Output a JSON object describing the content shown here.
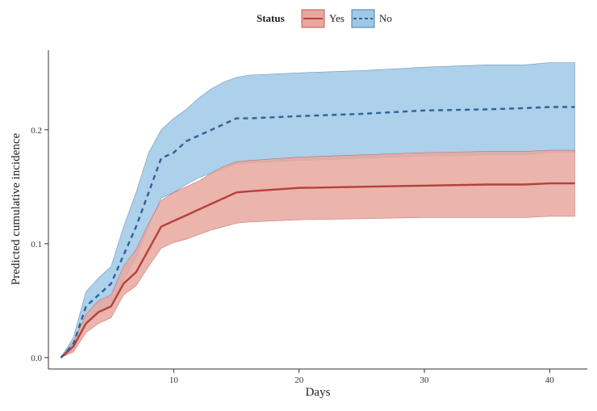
{
  "chart_data": {
    "type": "line",
    "xlabel": "Days",
    "ylabel": "Predicted cumulative incidence",
    "xlim": [
      0,
      43
    ],
    "ylim": [
      -0.01,
      0.27
    ],
    "x_ticks": [
      {
        "value": 10,
        "label": "10"
      },
      {
        "value": 20,
        "label": "20"
      },
      {
        "value": 30,
        "label": "30"
      },
      {
        "value": 40,
        "label": "40"
      }
    ],
    "y_ticks": [
      {
        "value": 0.0,
        "label": "0.0"
      },
      {
        "value": 0.1,
        "label": "0.1"
      },
      {
        "value": 0.2,
        "label": "0.2"
      }
    ],
    "grid": false,
    "legend": {
      "position": "top",
      "title": "Status",
      "entries": [
        "Yes",
        "No"
      ]
    },
    "series": [
      {
        "name": "Yes",
        "line_style": "solid",
        "line_color": "#b5413a",
        "band_color": "#e8a79f",
        "x": [
          1,
          2,
          3,
          4,
          5,
          6,
          7,
          8,
          9,
          10,
          11,
          12,
          13,
          14,
          15,
          16,
          20,
          25,
          30,
          35,
          38,
          40,
          42
        ],
        "y": [
          0.0,
          0.01,
          0.03,
          0.04,
          0.045,
          0.065,
          0.075,
          0.095,
          0.115,
          0.12,
          0.125,
          0.13,
          0.135,
          0.14,
          0.145,
          0.146,
          0.149,
          0.15,
          0.151,
          0.152,
          0.152,
          0.153,
          0.153
        ],
        "lower": [
          0.0,
          0.005,
          0.022,
          0.03,
          0.035,
          0.055,
          0.063,
          0.08,
          0.096,
          0.101,
          0.104,
          0.108,
          0.112,
          0.115,
          0.118,
          0.119,
          0.121,
          0.122,
          0.123,
          0.123,
          0.123,
          0.124,
          0.124
        ],
        "upper": [
          0.0,
          0.014,
          0.038,
          0.05,
          0.055,
          0.08,
          0.095,
          0.118,
          0.138,
          0.145,
          0.15,
          0.155,
          0.162,
          0.168,
          0.172,
          0.173,
          0.176,
          0.178,
          0.18,
          0.181,
          0.181,
          0.182,
          0.182
        ]
      },
      {
        "name": "No",
        "line_style": "dashed",
        "line_color": "#2e6296",
        "band_color": "#9fc8e8",
        "x": [
          1,
          2,
          3,
          4,
          5,
          6,
          7,
          8,
          9,
          10,
          11,
          12,
          13,
          14,
          15,
          16,
          20,
          25,
          30,
          35,
          38,
          40,
          42
        ],
        "y": [
          0.0,
          0.012,
          0.045,
          0.055,
          0.065,
          0.09,
          0.115,
          0.145,
          0.175,
          0.18,
          0.19,
          0.195,
          0.2,
          0.205,
          0.21,
          0.21,
          0.212,
          0.214,
          0.217,
          0.218,
          0.219,
          0.22,
          0.22
        ],
        "lower": [
          0.0,
          0.006,
          0.032,
          0.04,
          0.048,
          0.068,
          0.088,
          0.115,
          0.14,
          0.145,
          0.152,
          0.158,
          0.162,
          0.166,
          0.17,
          0.171,
          0.173,
          0.175,
          0.177,
          0.178,
          0.178,
          0.18,
          0.18
        ],
        "upper": [
          0.0,
          0.018,
          0.058,
          0.07,
          0.08,
          0.115,
          0.145,
          0.18,
          0.2,
          0.21,
          0.218,
          0.228,
          0.236,
          0.242,
          0.246,
          0.248,
          0.25,
          0.252,
          0.255,
          0.257,
          0.257,
          0.259,
          0.259
        ]
      }
    ]
  }
}
